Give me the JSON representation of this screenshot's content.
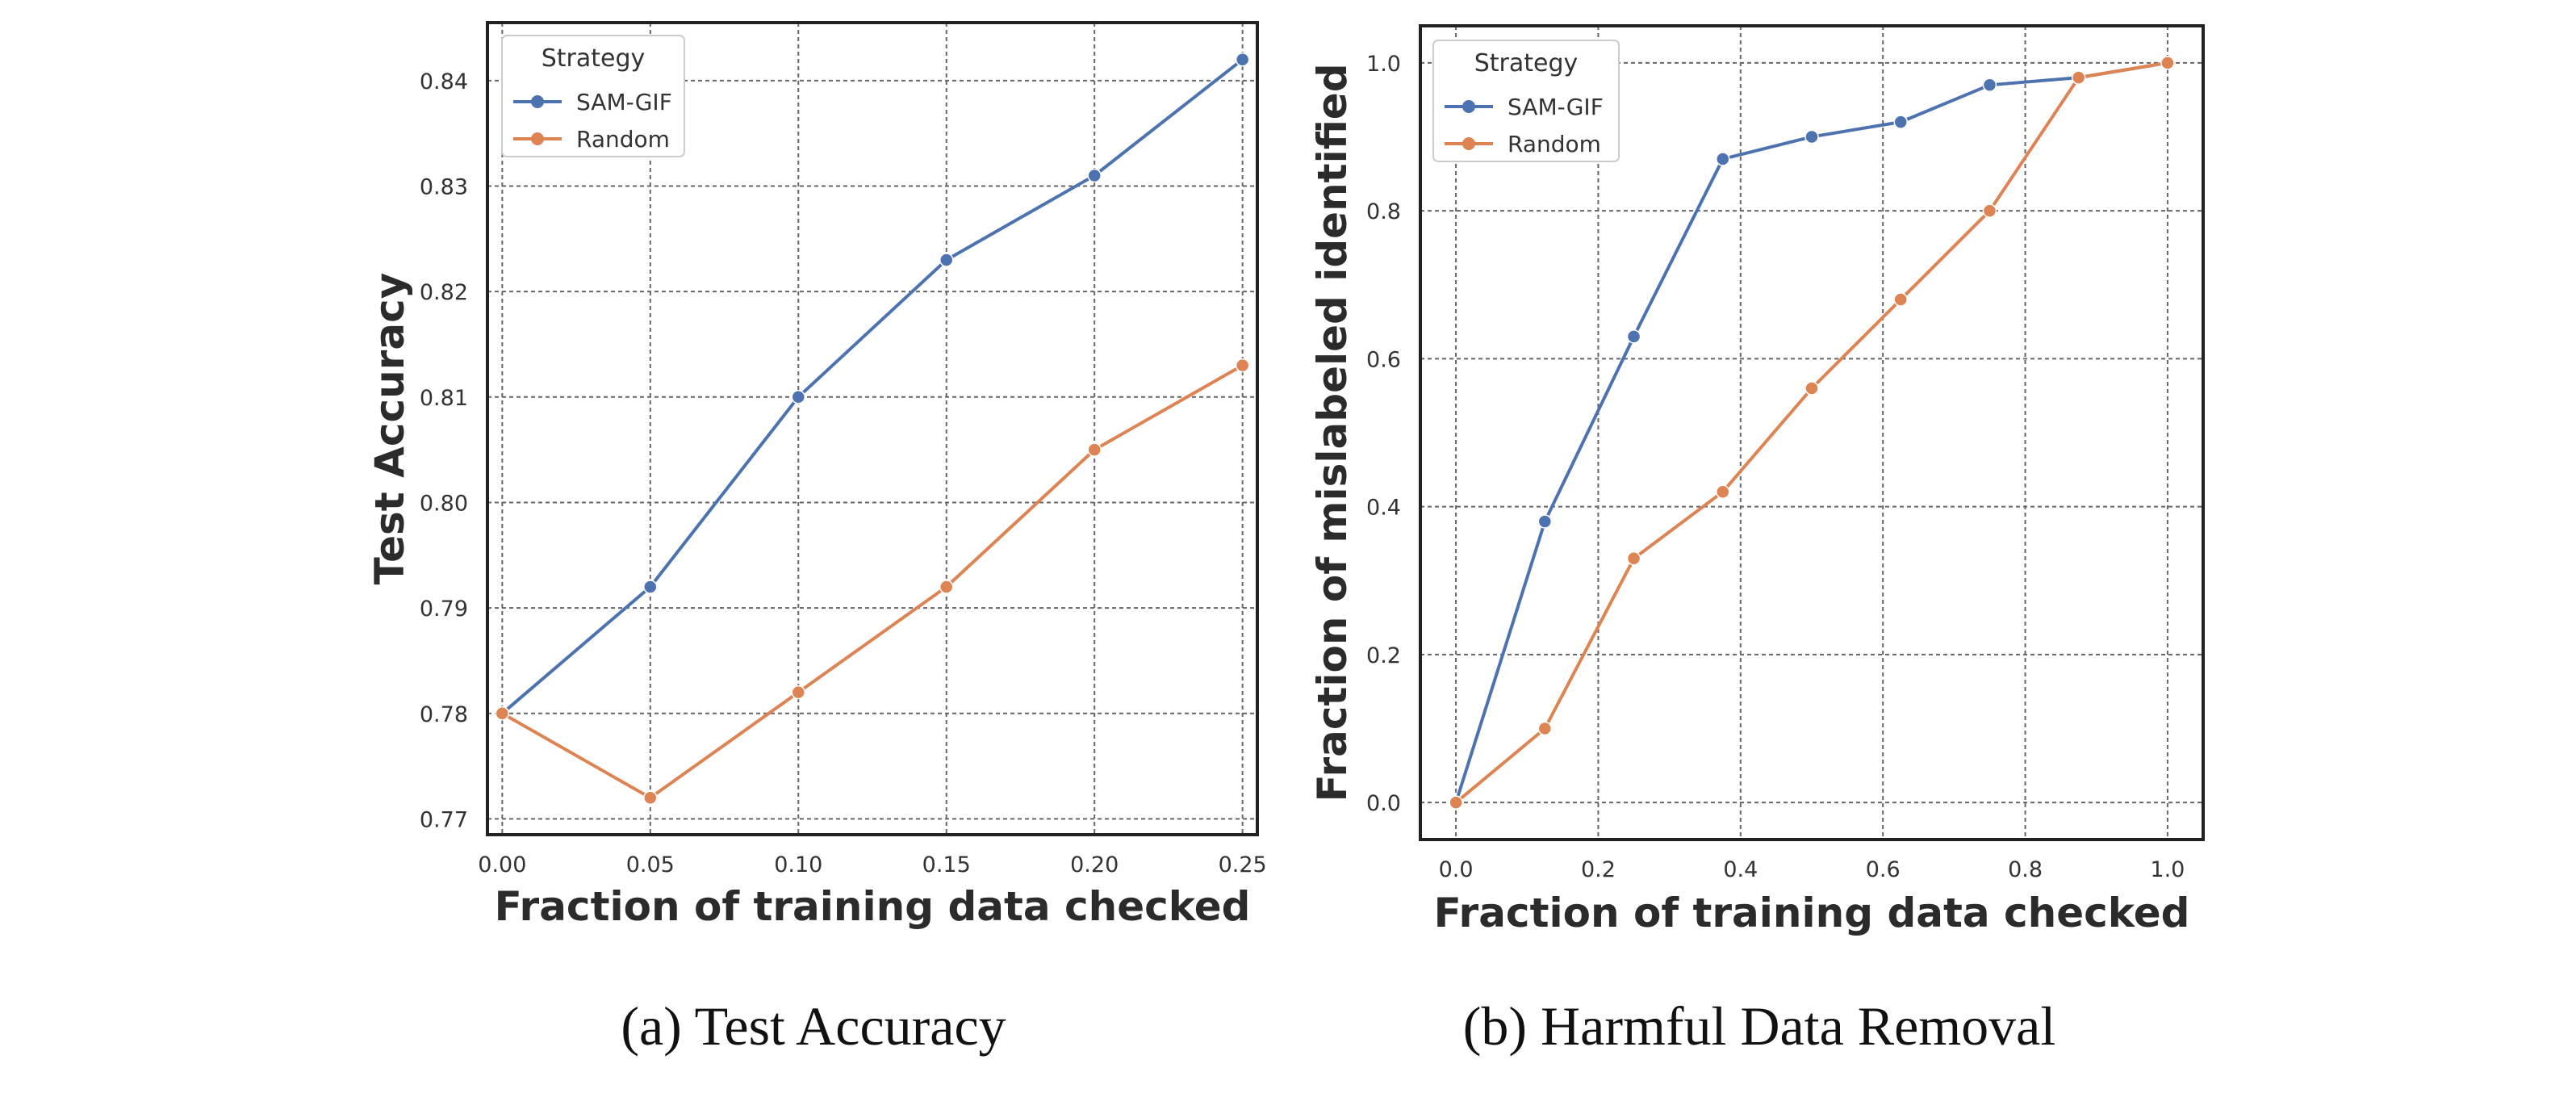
{
  "colors": {
    "SAM-GIF": "#4c72b0",
    "Random": "#dd8452",
    "grid": "#666666",
    "frame": "#222222"
  },
  "captions": {
    "a": "(a) Test Accuracy",
    "b": "(b) Harmful Data Removal"
  },
  "chart_data": [
    {
      "type": "line",
      "title": "",
      "xlabel": "Fraction of training data checked",
      "ylabel": "Test Accuracy",
      "xlim": [
        -0.005,
        0.255
      ],
      "ylim": [
        0.7685,
        0.8455
      ],
      "xticks": [
        0.0,
        0.05,
        0.1,
        0.15,
        0.2,
        0.25
      ],
      "xtick_labels": [
        "0.00",
        "0.05",
        "0.10",
        "0.15",
        "0.20",
        "0.25"
      ],
      "yticks": [
        0.77,
        0.78,
        0.79,
        0.8,
        0.81,
        0.82,
        0.83,
        0.84
      ],
      "ytick_labels": [
        "0.77",
        "0.78",
        "0.79",
        "0.80",
        "0.81",
        "0.82",
        "0.83",
        "0.84"
      ],
      "grid": true,
      "legend": {
        "title": "Strategy",
        "placement": "top-left"
      },
      "series": [
        {
          "name": "SAM-GIF",
          "x": [
            0.0,
            0.05,
            0.1,
            0.15,
            0.2,
            0.25
          ],
          "y": [
            0.78,
            0.792,
            0.81,
            0.823,
            0.831,
            0.842
          ]
        },
        {
          "name": "Random",
          "x": [
            0.0,
            0.05,
            0.1,
            0.15,
            0.2,
            0.25
          ],
          "y": [
            0.78,
            0.772,
            0.782,
            0.792,
            0.805,
            0.813
          ]
        }
      ]
    },
    {
      "type": "line",
      "title": "",
      "xlabel": "Fraction of training data checked",
      "ylabel": "Fraction of mislabeled identified",
      "xlim": [
        -0.05,
        1.05
      ],
      "ylim": [
        -0.05,
        1.05
      ],
      "xticks": [
        0.0,
        0.2,
        0.4,
        0.6,
        0.8,
        1.0
      ],
      "xtick_labels": [
        "0.0",
        "0.2",
        "0.4",
        "0.6",
        "0.8",
        "1.0"
      ],
      "yticks": [
        0.0,
        0.2,
        0.4,
        0.6,
        0.8,
        1.0
      ],
      "ytick_labels": [
        "0.0",
        "0.2",
        "0.4",
        "0.6",
        "0.8",
        "1.0"
      ],
      "grid": true,
      "legend": {
        "title": "Strategy",
        "placement": "top-left"
      },
      "series": [
        {
          "name": "SAM-GIF",
          "x": [
            0.0,
            0.125,
            0.25,
            0.375,
            0.5,
            0.625,
            0.75,
            0.875,
            1.0
          ],
          "y": [
            0.0,
            0.38,
            0.63,
            0.87,
            0.9,
            0.92,
            0.97,
            0.98,
            1.0
          ]
        },
        {
          "name": "Random",
          "x": [
            0.0,
            0.125,
            0.25,
            0.375,
            0.5,
            0.625,
            0.75,
            0.875,
            1.0
          ],
          "y": [
            0.0,
            0.1,
            0.33,
            0.42,
            0.56,
            0.68,
            0.8,
            0.98,
            1.0
          ]
        }
      ]
    }
  ]
}
